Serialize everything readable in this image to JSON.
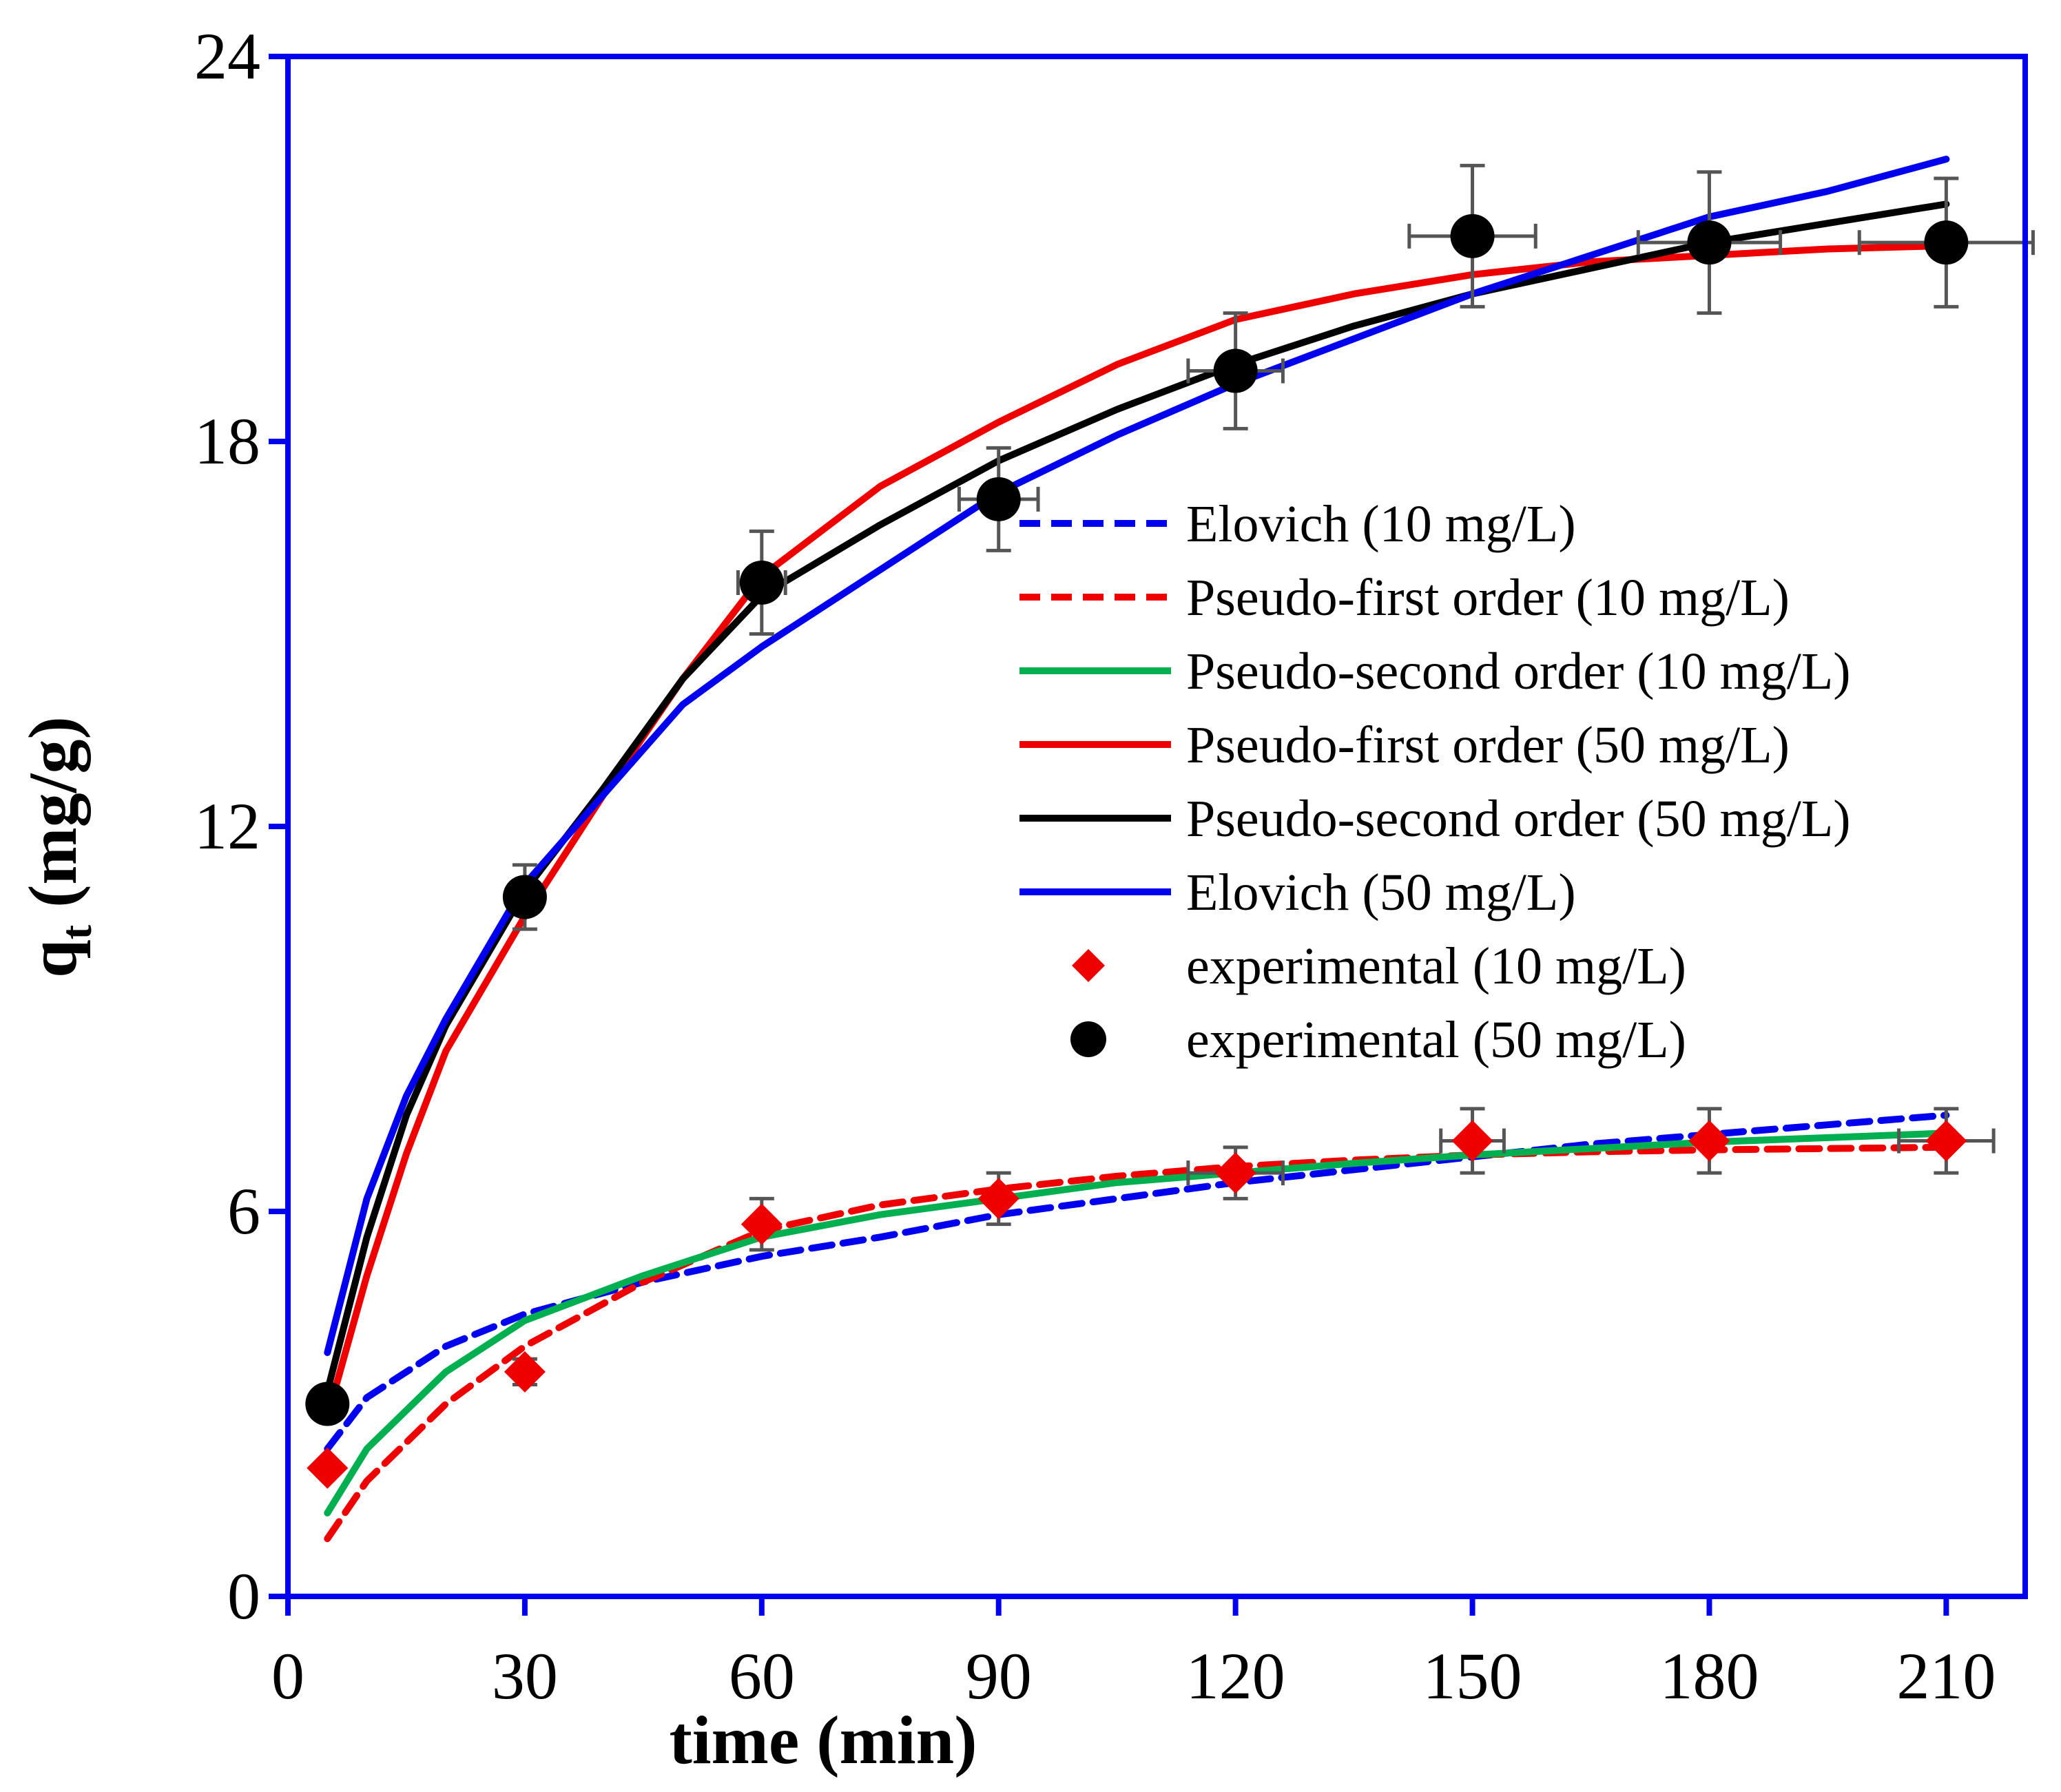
{
  "chart_data": {
    "type": "scatter",
    "xlabel": "time (min)",
    "ylabel": "q",
    "ylabel_sub": "t",
    "ylabel_unit": " (mg/g)",
    "xlim": [
      0,
      220
    ],
    "ylim": [
      0,
      24
    ],
    "xticks": [
      0,
      30,
      60,
      90,
      120,
      150,
      180,
      210
    ],
    "yticks": [
      0,
      6,
      12,
      18,
      24
    ],
    "legend_position": "center-right",
    "colors": {
      "axis": "#0000ee",
      "errorbar": "#555555"
    },
    "series": [
      {
        "name": "Elovich (10 mg/L)",
        "kind": "line",
        "color": "#0000ee",
        "dash": true,
        "x": [
          5,
          10,
          20,
          30,
          45,
          60,
          75,
          90,
          105,
          120,
          135,
          150,
          165,
          180,
          195,
          210
        ],
        "y": [
          2.3,
          3.1,
          3.9,
          4.4,
          4.9,
          5.3,
          5.6,
          5.95,
          6.2,
          6.45,
          6.65,
          6.85,
          7.05,
          7.2,
          7.35,
          7.5
        ]
      },
      {
        "name": "Pseudo-first order (10 mg/L)",
        "kind": "line",
        "color": "#ee0000",
        "dash": true,
        "x": [
          5,
          10,
          20,
          30,
          45,
          60,
          75,
          90,
          105,
          120,
          135,
          150,
          165,
          180,
          195,
          210
        ],
        "y": [
          0.9,
          1.8,
          3.0,
          3.9,
          4.9,
          5.7,
          6.1,
          6.35,
          6.55,
          6.7,
          6.8,
          6.88,
          6.93,
          6.96,
          6.98,
          7.0
        ]
      },
      {
        "name": "Pseudo-second order (10 mg/L)",
        "kind": "line",
        "color": "#00b050",
        "dash": false,
        "x": [
          5,
          10,
          20,
          30,
          45,
          60,
          75,
          90,
          105,
          120,
          135,
          150,
          165,
          180,
          195,
          210
        ],
        "y": [
          1.3,
          2.3,
          3.5,
          4.3,
          5.0,
          5.6,
          5.95,
          6.2,
          6.45,
          6.6,
          6.75,
          6.88,
          6.98,
          7.08,
          7.15,
          7.22
        ]
      },
      {
        "name": "Pseudo-first order (50 mg/L)",
        "kind": "line",
        "color": "#ee0000",
        "dash": false,
        "x": [
          5,
          10,
          15,
          20,
          30,
          40,
          50,
          60,
          75,
          90,
          105,
          120,
          135,
          150,
          165,
          180,
          195,
          210
        ],
        "y": [
          2.8,
          5.0,
          6.9,
          8.5,
          10.6,
          12.5,
          14.3,
          15.9,
          17.3,
          18.3,
          19.2,
          19.9,
          20.3,
          20.6,
          20.8,
          20.9,
          21.0,
          21.05
        ]
      },
      {
        "name": "Pseudo-second order (50 mg/L)",
        "kind": "line",
        "color": "#000000",
        "dash": false,
        "x": [
          5,
          10,
          15,
          20,
          30,
          40,
          50,
          60,
          75,
          90,
          105,
          120,
          135,
          150,
          165,
          180,
          195,
          210
        ],
        "y": [
          3.2,
          5.6,
          7.5,
          8.9,
          11.0,
          12.6,
          14.3,
          15.6,
          16.7,
          17.7,
          18.5,
          19.2,
          19.8,
          20.3,
          20.7,
          21.1,
          21.4,
          21.7
        ]
      },
      {
        "name": "Elovich (50 mg/L)",
        "kind": "line",
        "color": "#0000ee",
        "dash": false,
        "x": [
          5,
          10,
          15,
          20,
          30,
          40,
          50,
          60,
          75,
          90,
          105,
          120,
          135,
          150,
          165,
          180,
          195,
          210
        ],
        "y": [
          3.8,
          6.2,
          7.8,
          9.0,
          11.1,
          12.5,
          13.9,
          14.8,
          16.0,
          17.2,
          18.1,
          18.9,
          19.6,
          20.3,
          20.9,
          21.5,
          21.9,
          22.4
        ]
      },
      {
        "name": "experimental (10 mg/L)",
        "kind": "marker",
        "marker": "diamond",
        "color": "#ee0000",
        "x": [
          5,
          30,
          60,
          90,
          120,
          150,
          180,
          210
        ],
        "y": [
          2.0,
          3.5,
          5.8,
          6.2,
          6.6,
          7.1,
          7.1,
          7.1
        ],
        "xerr": [
          0,
          0,
          0,
          0,
          6,
          4,
          0,
          6
        ],
        "yerr": [
          0,
          0.2,
          0.4,
          0.4,
          0.4,
          0.5,
          0.5,
          0.5
        ]
      },
      {
        "name": "experimental (50 mg/L)",
        "kind": "marker",
        "marker": "circle",
        "color": "#000000",
        "x": [
          5,
          30,
          60,
          90,
          120,
          150,
          180,
          210
        ],
        "y": [
          3.0,
          10.9,
          15.8,
          17.1,
          19.1,
          21.2,
          21.1,
          21.1
        ],
        "xerr": [
          0,
          0,
          3,
          5,
          6,
          8,
          9,
          11
        ],
        "yerr": [
          0,
          0.5,
          0.8,
          0.8,
          0.9,
          1.1,
          1.1,
          1.0
        ]
      }
    ]
  }
}
